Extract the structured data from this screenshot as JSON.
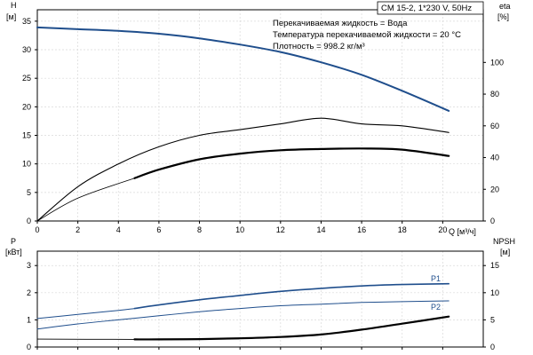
{
  "chart_data": [
    {
      "type": "line",
      "title": "CM 15-2, 1*230 V, 50Hz",
      "annotations": [
        "Перекачиваемая жидкость = Вода",
        "Температура перекачиваемой жидкости = 20 °C",
        "Плотность = 998.2 кг/м³"
      ],
      "xlabel": "Q [м³/ч]",
      "xlim": [
        0,
        22
      ],
      "x_ticks": [
        0,
        2,
        4,
        6,
        8,
        10,
        12,
        14,
        16,
        18,
        20
      ],
      "ylabel_left": "H",
      "ylabel_left_unit": "[м]",
      "ylim_left": [
        0,
        37
      ],
      "y_ticks_left": [
        0,
        5,
        10,
        15,
        20,
        25,
        30,
        35
      ],
      "ylabel_right": "eta",
      "ylabel_right_unit": "[%]",
      "ylim_right": [
        0,
        133.2
      ],
      "y_ticks_right": [
        0,
        20,
        40,
        60,
        80,
        100
      ],
      "grid": true,
      "series": [
        {
          "axis": "left",
          "color": "#1f4e8c",
          "width": 2.0,
          "x": [
            0,
            2,
            4,
            6,
            8,
            10,
            12,
            14,
            16,
            18,
            20.3
          ],
          "y": [
            33.9,
            33.6,
            33.3,
            32.8,
            32.0,
            30.9,
            29.6,
            27.8,
            25.6,
            22.8,
            19.3
          ]
        },
        {
          "axis": "right",
          "color": "#000000",
          "width": 1.1,
          "x": [
            0,
            2,
            4,
            6,
            8,
            10,
            12,
            14,
            16,
            18,
            20.3
          ],
          "y": [
            0,
            21.6,
            36,
            46.8,
            54,
            57.6,
            61.2,
            64.8,
            61.2,
            60,
            55.8
          ]
        },
        {
          "axis": "right",
          "color": "#000000",
          "width": 0.8,
          "x": [
            0,
            2,
            4.8
          ],
          "y": [
            0,
            14.4,
            27
          ]
        },
        {
          "axis": "right",
          "color": "#000000",
          "width": 2.2,
          "x": [
            4.8,
            6,
            8,
            10,
            12,
            14,
            16,
            18,
            20.3
          ],
          "y": [
            27,
            32.4,
            38.9,
            42.5,
            44.6,
            45.4,
            45.7,
            45.0,
            41.0
          ]
        }
      ]
    },
    {
      "type": "line",
      "xlim": [
        0,
        22
      ],
      "ylabel_left": "P",
      "ylabel_left_unit": "[кВт]",
      "ylim_left": [
        0,
        3.53
      ],
      "y_ticks_left": [
        0,
        1,
        2,
        3
      ],
      "ylabel_right": "NPSH",
      "ylabel_right_unit": "[м]",
      "ylim_right": [
        0,
        17.65
      ],
      "y_ticks_right": [
        0,
        5,
        10,
        15
      ],
      "grid": true,
      "series": [
        {
          "name": "P1",
          "axis": "left",
          "color": "#1f4e8c",
          "width": 1.0,
          "x": [
            0,
            2,
            4,
            4.8
          ],
          "y": [
            1.05,
            1.2,
            1.35,
            1.42
          ]
        },
        {
          "axis": "left",
          "color": "#1f4e8c",
          "width": 1.6,
          "x": [
            4.8,
            6,
            8,
            10,
            12,
            14,
            16,
            18,
            20.3
          ],
          "y": [
            1.42,
            1.55,
            1.74,
            1.9,
            2.05,
            2.16,
            2.25,
            2.3,
            2.33
          ]
        },
        {
          "name": "P2",
          "axis": "left",
          "color": "#1f4e8c",
          "width": 1.0,
          "x": [
            0,
            2,
            4,
            6,
            8,
            10,
            12,
            14,
            16,
            18,
            20.3
          ],
          "y": [
            0.66,
            0.85,
            1.0,
            1.15,
            1.3,
            1.42,
            1.52,
            1.58,
            1.64,
            1.67,
            1.7
          ]
        },
        {
          "axis": "right",
          "color": "#000000",
          "width": 0.9,
          "x": [
            0,
            4.8
          ],
          "y": [
            1.45,
            1.4
          ]
        },
        {
          "axis": "right",
          "color": "#000000",
          "width": 2.2,
          "x": [
            4.8,
            6,
            8,
            10,
            12,
            14,
            16,
            18,
            20.3
          ],
          "y": [
            1.4,
            1.4,
            1.45,
            1.6,
            1.85,
            2.3,
            3.2,
            4.3,
            5.6
          ]
        }
      ]
    }
  ]
}
